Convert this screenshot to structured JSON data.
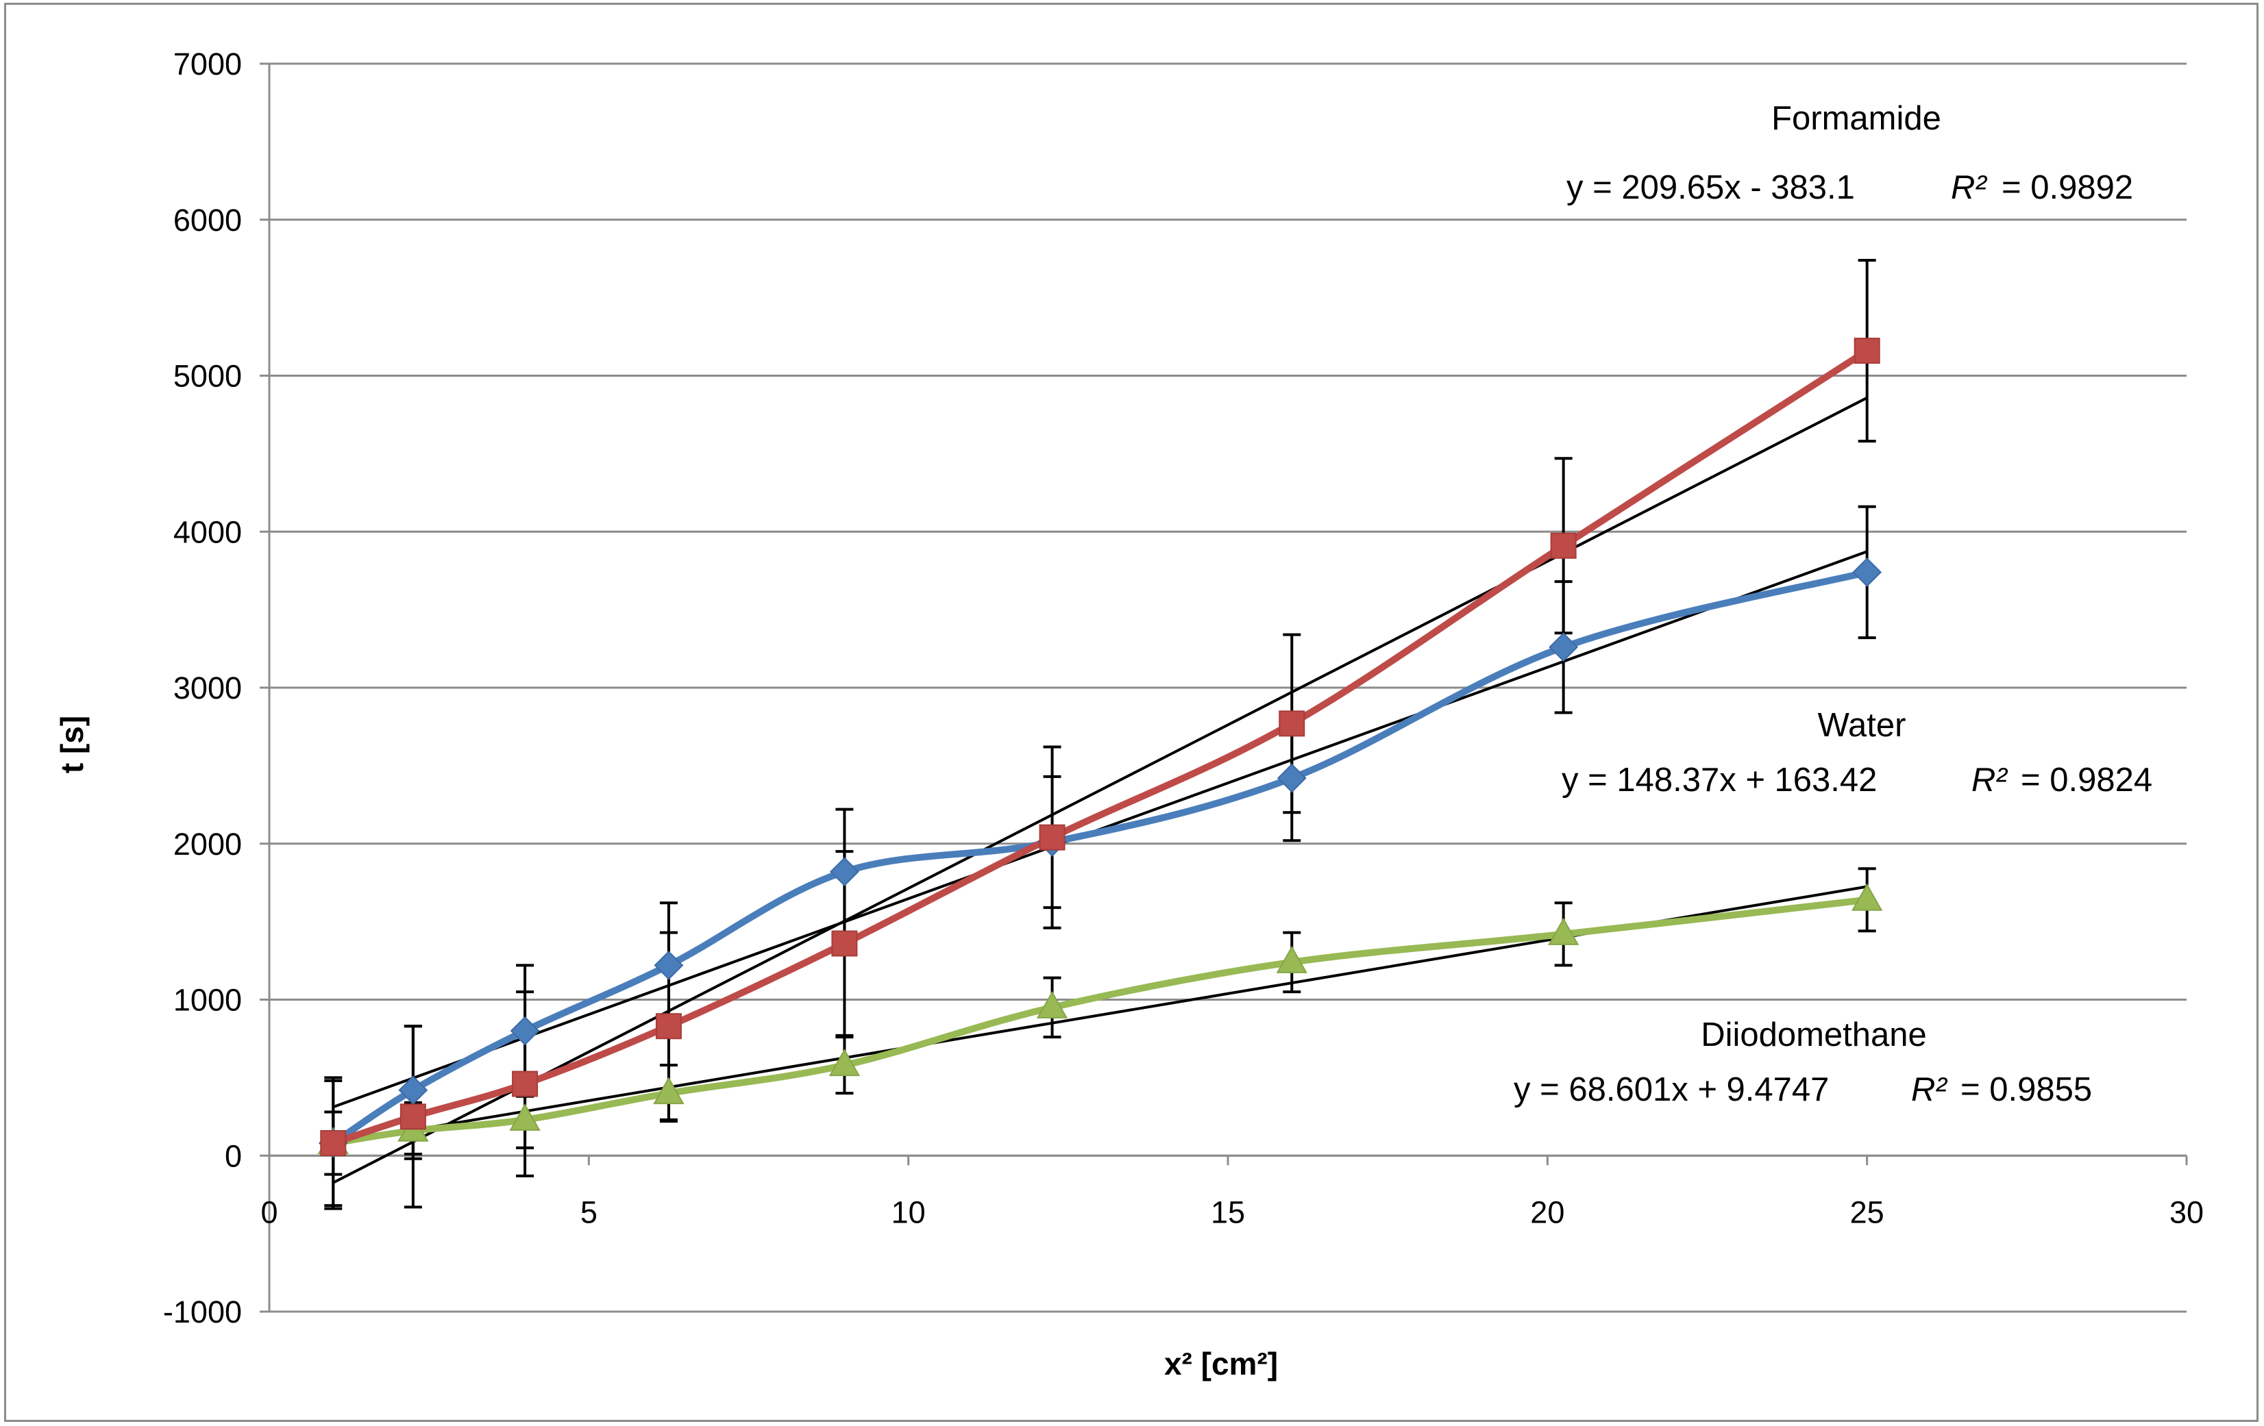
{
  "chart_data": {
    "type": "line",
    "title": "",
    "xlabel": "x² [cm²]",
    "ylabel": "t [s]",
    "xlim": [
      0,
      30
    ],
    "ylim": [
      -1000,
      7000
    ],
    "x_ticks": [
      0,
      5,
      10,
      15,
      20,
      25,
      30
    ],
    "y_ticks": [
      -1000,
      0,
      1000,
      2000,
      3000,
      4000,
      5000,
      6000,
      7000
    ],
    "x_tick_labels": [
      "0",
      "5",
      "10",
      "15",
      "20",
      "25",
      "30"
    ],
    "y_tick_labels": [
      "-1000",
      "0",
      "1000",
      "2000",
      "3000",
      "4000",
      "5000",
      "6000",
      "7000"
    ],
    "grid": "horizontal",
    "legend": "none",
    "x": [
      1,
      2.25,
      4,
      6.25,
      9,
      12.25,
      16,
      20.25,
      25
    ],
    "series": [
      {
        "name": "Water",
        "color": "#4a7ebb",
        "marker": "diamond",
        "values": [
          80,
          420,
          800,
          1220,
          1820,
          2010,
          2420,
          3260,
          3740
        ],
        "errors": [
          400,
          410,
          420,
          400,
          400,
          420,
          400,
          420,
          420
        ],
        "fit": {
          "slope": 148.37,
          "intercept": 163.42,
          "equation": "y = 148.37x + 163.42",
          "r2_label": "R²",
          "r2_value": "= 0.9824"
        }
      },
      {
        "name": "Formamide",
        "color": "#be4b48",
        "marker": "square",
        "values": [
          80,
          250,
          460,
          830,
          1360,
          2040,
          2770,
          3910,
          5160
        ],
        "errors": [
          420,
          580,
          590,
          600,
          590,
          580,
          570,
          560,
          580
        ],
        "fit": {
          "slope": 209.65,
          "intercept": -383.1,
          "equation": "y = 209.65x - 383.1",
          "r2_label": "R²",
          "r2_value": "= 0.9892"
        }
      },
      {
        "name": "Diiodomethane",
        "color": "#98b954",
        "marker": "triangle",
        "values": [
          80,
          160,
          230,
          400,
          580,
          950,
          1240,
          1420,
          1640
        ],
        "errors": [
          200,
          180,
          180,
          180,
          180,
          190,
          190,
          200,
          200
        ],
        "fit": {
          "slope": 68.601,
          "intercept": 9.4747,
          "equation": "y = 68.601x + 9.4747",
          "r2_label": "R²",
          "r2_value": "= 0.9855"
        }
      }
    ],
    "annotations": {
      "formamide_name": "Formamide",
      "water_name": "Water",
      "diiodomethane_name": "Diiodomethane"
    }
  }
}
